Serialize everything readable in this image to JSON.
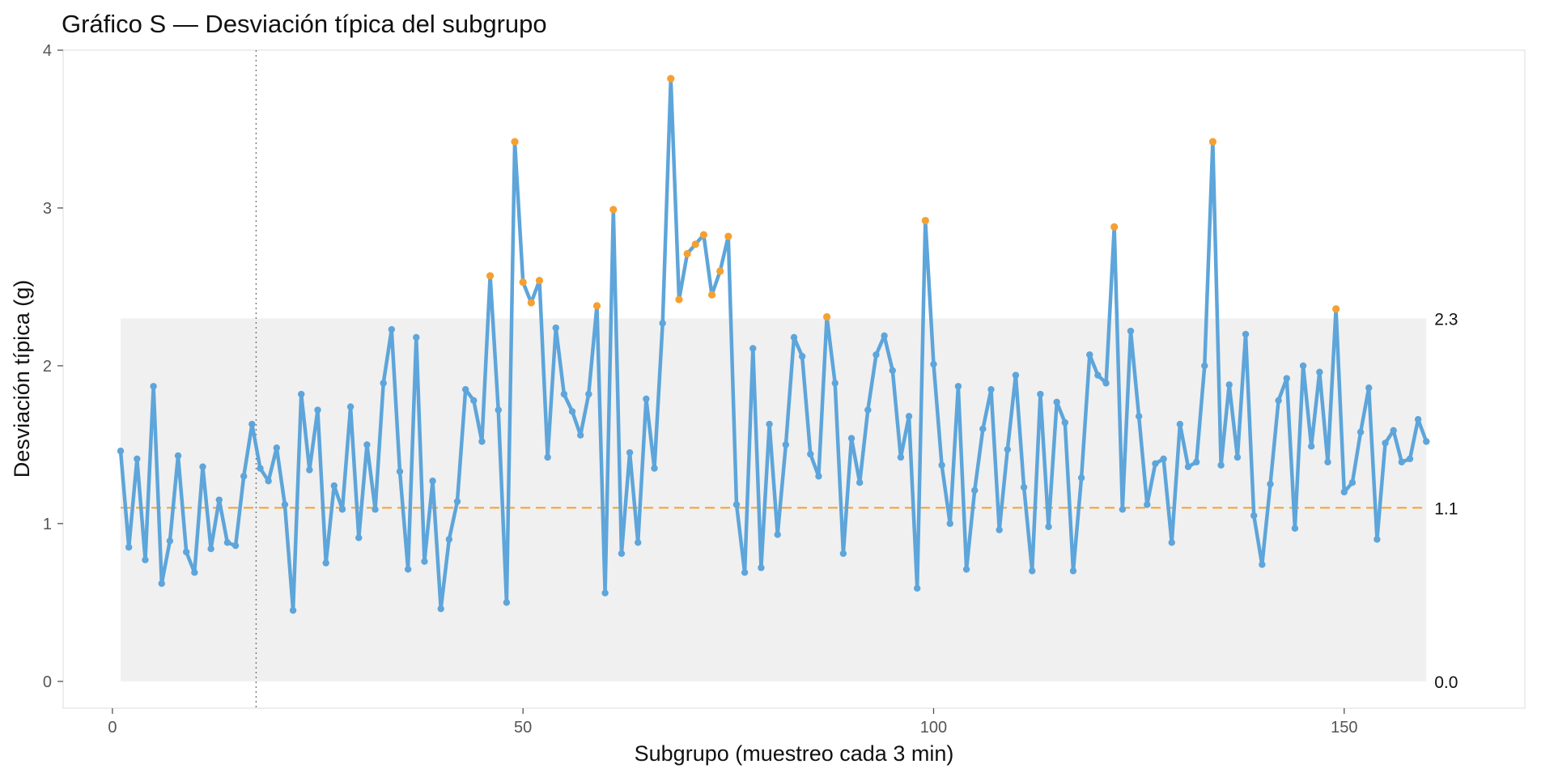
{
  "chart_data": {
    "type": "line",
    "title": "Gráfico S — Desviación típica del subgrupo",
    "xlabel": "Subgrupo (muestreo cada 3 min)",
    "ylabel": "Desviación típica (g)",
    "xlim": [
      -6,
      172
    ],
    "ylim": [
      -0.17,
      4.0
    ],
    "xticks": [
      0,
      50,
      100,
      150
    ],
    "yticks": [
      0,
      1,
      2,
      3,
      4
    ],
    "grid": false,
    "legend": "none",
    "control_limits": {
      "center": 1.1,
      "center_label": "1.1",
      "ucl": 2.3,
      "ucl_label": "2.3",
      "lcl": 0.0,
      "lcl_label": "0.0"
    },
    "phase_boundary_x": 17.5,
    "colors": {
      "line": "#5DA5DA",
      "out_of_control": "#F5A031",
      "center_line": "#F5A031",
      "band": "#F0F0F0",
      "phase_line": "#777777"
    },
    "series": [
      {
        "x": [
          1,
          2,
          3,
          4,
          5,
          6,
          7,
          8,
          9,
          10,
          11,
          12,
          13,
          14,
          15,
          16,
          17,
          18,
          19,
          20,
          21,
          22,
          23,
          24,
          25,
          26,
          27,
          28,
          29,
          30,
          31,
          32,
          33,
          34,
          35,
          36,
          37,
          38,
          39,
          40,
          41,
          42,
          43,
          44,
          45,
          46,
          47,
          48,
          49,
          50,
          51,
          52,
          53,
          54,
          55,
          56,
          57,
          58,
          59,
          60,
          61,
          62,
          63,
          64,
          65,
          66,
          67,
          68,
          69,
          70,
          71,
          72,
          73,
          74,
          75,
          76,
          77,
          78,
          79,
          80,
          81,
          82,
          83,
          84,
          85,
          86,
          87,
          88,
          89,
          90,
          91,
          92,
          93,
          94,
          95,
          96,
          97,
          98,
          99,
          100,
          101,
          102,
          103,
          104,
          105,
          106,
          107,
          108,
          109,
          110,
          111,
          112,
          113,
          114,
          115,
          116,
          117,
          118,
          119,
          120,
          121,
          122,
          123,
          124,
          125,
          126,
          127,
          128,
          129,
          130,
          131,
          132,
          133,
          134,
          135,
          136,
          137,
          138,
          139,
          140,
          141,
          142,
          143,
          144,
          145,
          146,
          147,
          148,
          149,
          150,
          151,
          152,
          153,
          154,
          155,
          156,
          157,
          158,
          159,
          160
        ],
        "values": [
          1.46,
          0.85,
          1.41,
          0.77,
          1.87,
          0.62,
          0.89,
          1.43,
          0.82,
          0.69,
          1.36,
          0.84,
          1.15,
          0.88,
          0.86,
          1.3,
          1.63,
          1.35,
          1.27,
          1.48,
          1.12,
          0.45,
          1.82,
          1.34,
          1.72,
          0.75,
          1.24,
          1.09,
          1.74,
          0.91,
          1.5,
          1.09,
          1.89,
          2.23,
          1.33,
          0.71,
          2.18,
          0.76,
          1.27,
          0.46,
          0.9,
          1.14,
          1.85,
          1.78,
          1.52,
          2.57,
          1.72,
          0.5,
          3.42,
          2.53,
          2.4,
          2.54,
          1.42,
          2.24,
          1.82,
          1.71,
          1.56,
          1.82,
          2.38,
          0.56,
          2.99,
          0.81,
          1.45,
          0.88,
          1.79,
          1.35,
          2.27,
          3.82,
          2.42,
          2.71,
          2.77,
          2.83,
          2.45,
          2.6,
          2.82,
          1.12,
          0.69,
          2.11,
          0.72,
          1.63,
          0.93,
          1.5,
          2.18,
          2.06,
          1.44,
          1.3,
          2.31,
          1.89,
          0.81,
          1.54,
          1.26,
          1.72,
          2.07,
          2.19,
          1.97,
          1.42,
          1.68,
          0.59,
          2.92,
          2.01,
          1.37,
          1.0,
          1.87,
          0.71,
          1.21,
          1.6,
          1.85,
          0.96,
          1.47,
          1.94,
          1.23,
          0.7,
          1.82,
          0.98,
          1.77,
          1.64,
          0.7,
          1.29,
          2.07,
          1.94,
          1.89,
          2.88,
          1.09,
          2.22,
          1.68,
          1.12,
          1.38,
          1.41,
          0.88,
          1.63,
          1.36,
          1.39,
          2.0,
          3.42,
          1.37,
          1.88,
          1.42,
          2.2,
          1.05,
          0.74,
          1.25,
          1.78,
          1.92,
          0.97,
          2.0,
          1.49,
          1.96,
          1.39,
          2.36,
          1.2,
          1.26,
          1.58,
          1.86,
          0.9,
          1.51,
          1.59,
          1.39,
          1.41,
          1.66,
          1.52
        ]
      }
    ]
  }
}
